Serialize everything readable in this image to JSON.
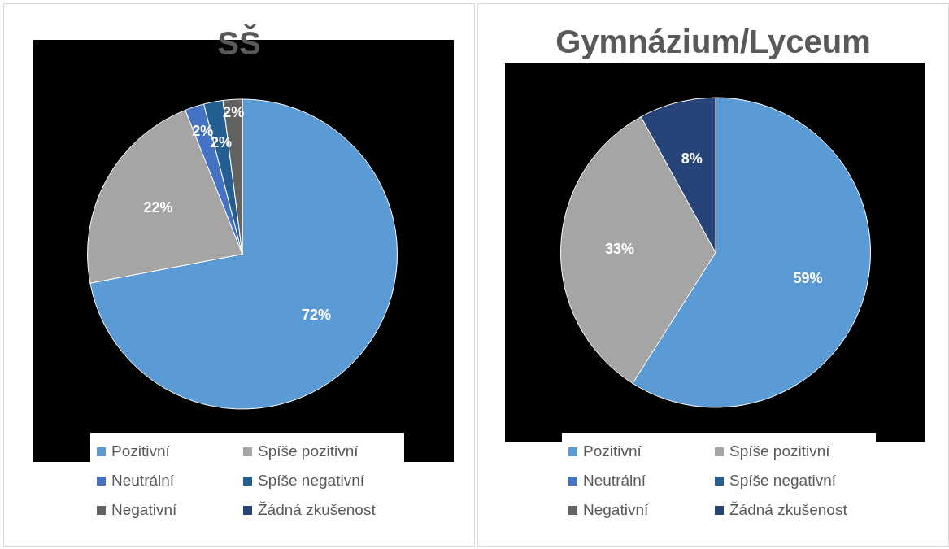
{
  "chart_data": [
    {
      "type": "pie",
      "title": "SŠ",
      "categories": [
        "Pozitivní",
        "Spíše pozitivní",
        "Neutrální",
        "Spíše negativní",
        "Negativní",
        "Žádná zkušenost"
      ],
      "values": [
        72,
        22,
        2,
        2,
        2,
        0
      ],
      "colors": [
        "#5b9bd5",
        "#a5a5a5",
        "#4472c4",
        "#255e91",
        "#636363",
        "#264478"
      ],
      "value_labels": [
        "72%",
        "22%",
        "2%",
        "2%",
        "2%",
        null
      ],
      "legend": "bottom"
    },
    {
      "type": "pie",
      "title": "Gymnázium/Lyceum",
      "categories": [
        "Pozitivní",
        "Spíše pozitivní",
        "Neutrální",
        "Spíše negativní",
        "Negativní",
        "Žádná zkušenost"
      ],
      "values": [
        59,
        33,
        0,
        0,
        0,
        8
      ],
      "colors": [
        "#5b9bd5",
        "#a5a5a5",
        "#4472c4",
        "#255e91",
        "#636363",
        "#264478"
      ],
      "value_labels": [
        "59%",
        "33%",
        null,
        null,
        null,
        "8%"
      ],
      "legend": "bottom"
    }
  ]
}
